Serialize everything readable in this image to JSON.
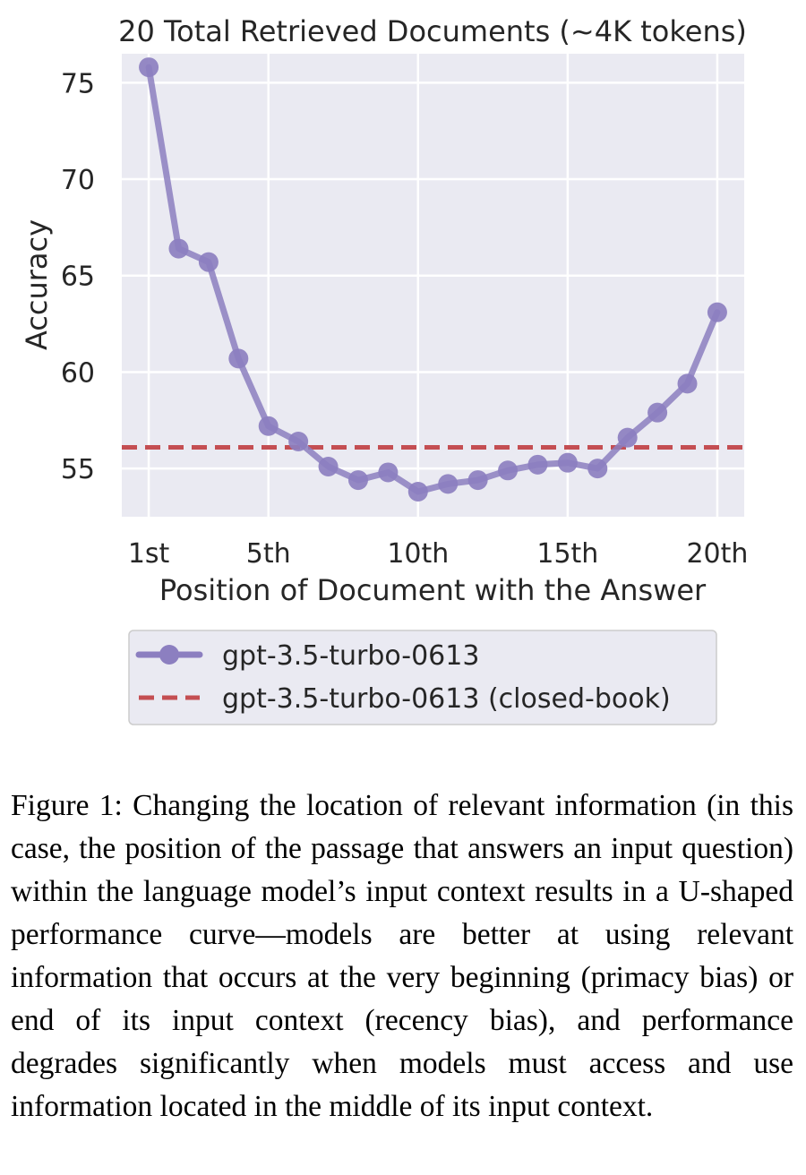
{
  "chart_data": {
    "type": "line",
    "title": "20 Total Retrieved Documents (~4K tokens)",
    "xlabel": "Position of Document with the Answer",
    "ylabel": "Accuracy",
    "x": [
      1,
      2,
      3,
      4,
      5,
      6,
      7,
      8,
      9,
      10,
      11,
      12,
      13,
      14,
      15,
      16,
      17,
      18,
      19,
      20
    ],
    "xlim": [
      0.1,
      20.9
    ],
    "ylim": [
      52.5,
      76.5
    ],
    "xticks": [
      1,
      5,
      10,
      15,
      20
    ],
    "xtick_labels": [
      "1st",
      "5th",
      "10th",
      "15th",
      "20th"
    ],
    "yticks": [
      55,
      60,
      65,
      70,
      75
    ],
    "ytick_labels": [
      "55",
      "60",
      "65",
      "70",
      "75"
    ],
    "grid": true,
    "legend_position": "below",
    "series": [
      {
        "name": "gpt-3.5-turbo-0613",
        "color": "#8C7FC0",
        "style": "solid-with-markers",
        "values": [
          75.8,
          66.4,
          65.7,
          60.7,
          57.2,
          56.4,
          55.1,
          54.4,
          54.8,
          53.8,
          54.2,
          54.4,
          54.9,
          55.2,
          55.3,
          55.0,
          56.6,
          57.9,
          59.4,
          63.1
        ]
      },
      {
        "name": "gpt-3.5-turbo-0613 (closed-book)",
        "color": "#C44E52",
        "style": "dashed",
        "value": 56.1
      }
    ]
  },
  "caption": "Figure 1: Changing the location of relevant information (in this case, the position of the passage that answers an input question) within the language model’s input context results in a U-shaped performance curve—models are better at using relevant information that occurs at the very beginning (primacy bias) or end of its input context (recency bias), and performance degrades significantly when models must access and use information located in the middle of its input context."
}
